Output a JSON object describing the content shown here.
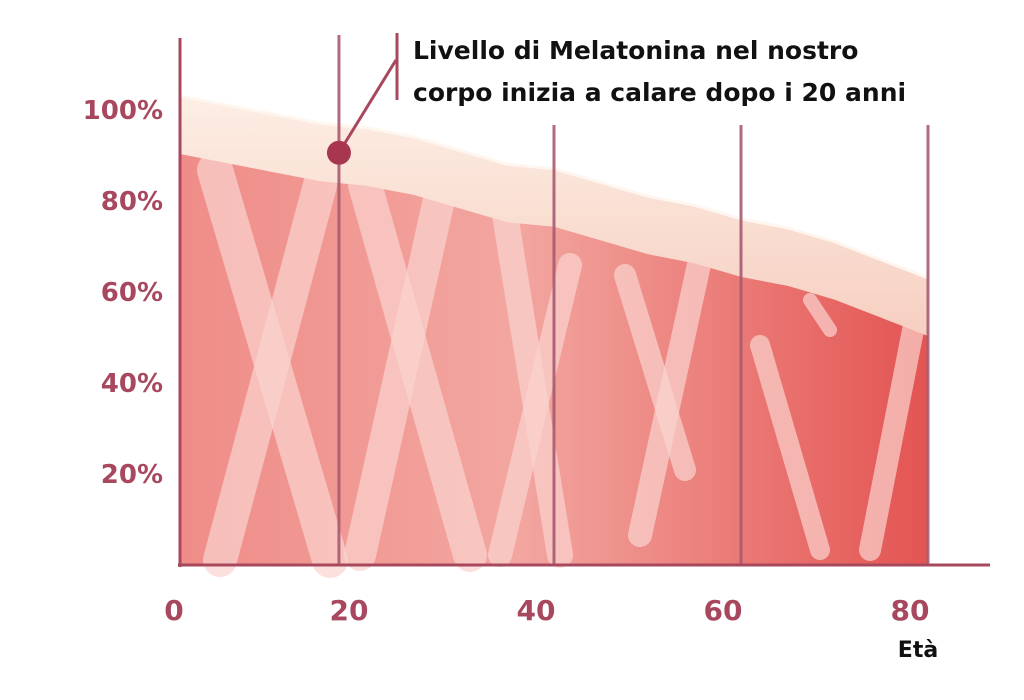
{
  "chart_data": {
    "type": "area",
    "title": "",
    "xlabel": "Età",
    "ylabel": "",
    "xlim": [
      0,
      85
    ],
    "ylim": [
      0,
      110
    ],
    "grid": "vertical",
    "x_ticks": [
      "0",
      "20",
      "40",
      "60",
      "80"
    ],
    "y_ticks": [
      "20%",
      "40%",
      "60%",
      "80%",
      "100%"
    ],
    "y_tick_values": [
      20,
      40,
      60,
      80,
      100
    ],
    "x_tick_values": [
      0,
      20,
      40,
      60,
      80
    ],
    "series": [
      {
        "values_x": [
          0,
          5,
          10,
          15,
          20,
          25,
          30,
          35,
          40,
          45,
          50,
          55,
          60,
          65,
          70,
          75,
          80
        ],
        "values_y": [
          100,
          98,
          96,
          94,
          93,
          91,
          88,
          85,
          84,
          81,
          78,
          76,
          73,
          71,
          68,
          64,
          60
        ]
      }
    ],
    "highlight_point": {
      "x": 17,
      "y": 95
    },
    "annotation": {
      "line1": "Livello di Melatonina nel nostro",
      "line2": "corpo inizia a calare dopo i 20 anni"
    },
    "colors": {
      "fill_light": "#f3a09d",
      "fill_dark": "#e55a58",
      "band": "#fbe3d6",
      "axis": "#a8485f",
      "marker": "#a8364f",
      "gridline": "#a85b70"
    }
  }
}
